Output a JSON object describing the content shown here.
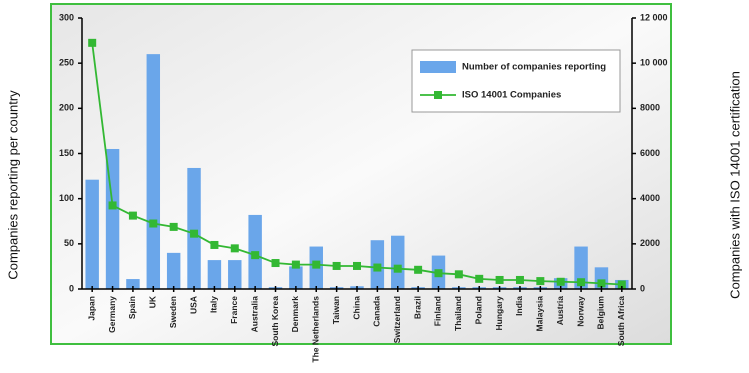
{
  "chart_data": {
    "type": "bar-line",
    "y_label": "Companies reporting per country",
    "y2_label": "Companies with ISO 14001 certification",
    "categories": [
      "Japan",
      "Germany",
      "Spain",
      "UK",
      "Sweden",
      "USA",
      "Italy",
      "France",
      "Australia",
      "South Korea",
      "Denmark",
      "The Netherlands",
      "Taiwan",
      "China",
      "Canada",
      "Switzerland",
      "Brazil",
      "Finland",
      "Thailand",
      "Poland",
      "Hungary",
      "India",
      "Malaysia",
      "Austria",
      "Norway",
      "Belgium",
      "South Africa"
    ],
    "series": [
      {
        "name": "Number of companies reporting",
        "type": "bar",
        "color": "#6aa6ea",
        "values": [
          121,
          155,
          11,
          260,
          40,
          134,
          32,
          32,
          82,
          2,
          25,
          47,
          2,
          3,
          54,
          59,
          2,
          37,
          2,
          2,
          2,
          2,
          2,
          12,
          47,
          24,
          10
        ]
      },
      {
        "name": "ISO 14001 Companies",
        "type": "line",
        "axis": "y2",
        "color": "#33b833",
        "values": [
          10900,
          3700,
          3250,
          2900,
          2750,
          2450,
          1950,
          1800,
          1500,
          1150,
          1080,
          1080,
          1020,
          1020,
          950,
          900,
          850,
          700,
          650,
          450,
          400,
          400,
          350,
          320,
          300,
          250,
          200
        ]
      }
    ],
    "ylim": [
      0,
      300
    ],
    "yticks": [
      0,
      50,
      100,
      150,
      200,
      250,
      300
    ],
    "y2lim": [
      0,
      12000
    ],
    "y2ticks": [
      0,
      2000,
      4000,
      6000,
      8000,
      {
        "value": 10000,
        "label": "10 000"
      },
      {
        "value": 12000,
        "label": "12 000"
      }
    ],
    "legend": "upper right"
  }
}
